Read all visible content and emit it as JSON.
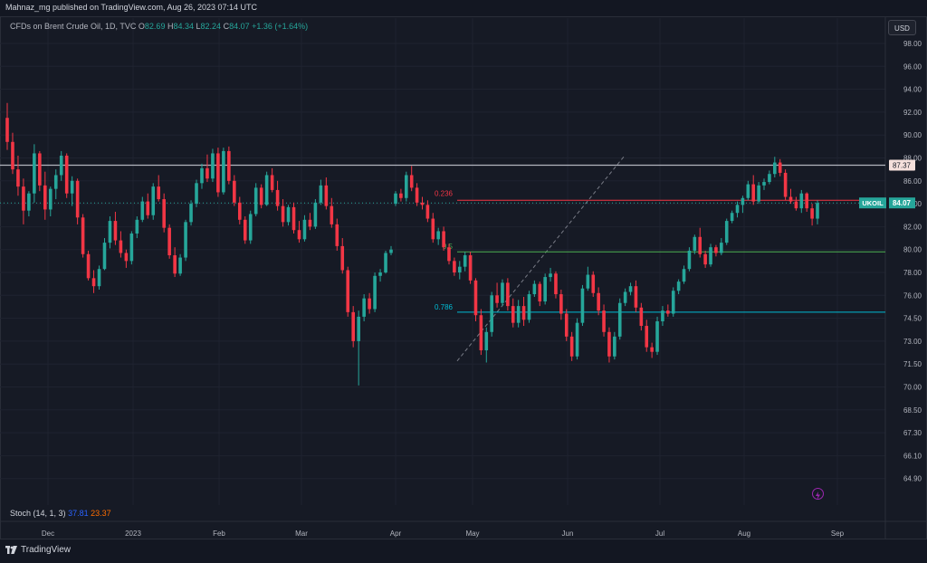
{
  "header": {
    "published": "Mahnaz_mg published on TradingView.com, Aug 26, 2023 07:14 UTC"
  },
  "legend": {
    "symbol": "CFDs on Brent Crude Oil, 1D, TVC",
    "open_label": "O",
    "open": "82.69",
    "high_label": "H",
    "high": "84.34",
    "low_label": "L",
    "low": "82.24",
    "close_label": "C",
    "close": "84.07",
    "change": "+1.36 (+1.64%)"
  },
  "currency_button": "USD",
  "price_axis": [
    "98.00",
    "96.00",
    "94.00",
    "92.00",
    "90.00",
    "88.00",
    "86.00",
    "84.00",
    "82.00",
    "80.00",
    "78.00",
    "76.00",
    "74.50",
    "73.00",
    "71.50",
    "70.00",
    "68.50",
    "67.30",
    "66.10",
    "64.90"
  ],
  "time_axis": [
    "Dec",
    "2023",
    "Feb",
    "Mar",
    "Apr",
    "May",
    "Jun",
    "Jul",
    "Aug",
    "Sep"
  ],
  "fib_labels": [
    "0.236",
    "0.5",
    "0.786"
  ],
  "horizontal_line": {
    "label": "87.37"
  },
  "current_price": {
    "symbol": "UKOIL",
    "value": "84.07"
  },
  "stoch": {
    "label": "Stoch (14, 1, 3)",
    "k": "37.81",
    "d": "23.37"
  },
  "brand": "TradingView",
  "colors": {
    "up": "#26a69a",
    "down": "#f23645",
    "bg": "#161a25",
    "grid": "#1f2330",
    "resistance": "#b2b5be",
    "fib236": "#f23645",
    "fib50": "#4caf50",
    "fib786": "#00bcd4"
  },
  "chart_data": {
    "type": "candlestick",
    "timeframe": "1D",
    "ylim": [
      64.9,
      98.0
    ],
    "y_scale": "nonlinear-axis",
    "candles": [
      [
        91.5,
        92.8,
        88.7,
        89.4
      ],
      [
        89.4,
        90.2,
        86.6,
        87.0
      ],
      [
        87.0,
        88.2,
        84.7,
        85.5
      ],
      [
        85.5,
        86.2,
        82.2,
        83.4
      ],
      [
        83.4,
        85.1,
        82.9,
        84.9
      ],
      [
        84.9,
        89.2,
        84.1,
        88.4
      ],
      [
        88.4,
        88.6,
        85.1,
        85.6
      ],
      [
        85.6,
        86.8,
        82.6,
        83.5
      ],
      [
        83.5,
        85.5,
        82.9,
        85.3
      ],
      [
        85.3,
        87.0,
        84.4,
        86.5
      ],
      [
        86.5,
        88.6,
        86.0,
        88.2
      ],
      [
        88.2,
        88.4,
        84.5,
        84.9
      ],
      [
        84.9,
        86.4,
        83.8,
        86.0
      ],
      [
        86.0,
        86.2,
        82.2,
        82.8
      ],
      [
        82.8,
        83.1,
        79.3,
        79.6
      ],
      [
        79.6,
        79.9,
        77.3,
        77.5
      ],
      [
        77.5,
        78.2,
        76.2,
        76.8
      ],
      [
        76.8,
        78.6,
        76.5,
        78.3
      ],
      [
        78.3,
        81.0,
        78.2,
        80.6
      ],
      [
        80.6,
        82.9,
        80.1,
        82.5
      ],
      [
        82.5,
        83.3,
        80.4,
        80.8
      ],
      [
        80.8,
        81.6,
        79.3,
        79.7
      ],
      [
        79.7,
        80.0,
        78.4,
        79.0
      ],
      [
        79.0,
        81.6,
        78.7,
        81.4
      ],
      [
        81.4,
        82.9,
        81.0,
        82.6
      ],
      [
        82.6,
        84.6,
        82.4,
        84.2
      ],
      [
        84.2,
        84.9,
        82.7,
        83.0
      ],
      [
        83.0,
        85.8,
        82.6,
        85.5
      ],
      [
        85.5,
        86.5,
        84.2,
        84.4
      ],
      [
        84.4,
        84.9,
        81.5,
        81.9
      ],
      [
        81.9,
        82.2,
        79.2,
        79.5
      ],
      [
        79.5,
        80.2,
        77.6,
        77.9
      ],
      [
        77.9,
        79.6,
        77.7,
        79.3
      ],
      [
        79.3,
        82.6,
        79.0,
        82.4
      ],
      [
        82.4,
        84.3,
        82.1,
        84.0
      ],
      [
        84.0,
        86.1,
        83.7,
        85.8
      ],
      [
        85.8,
        87.5,
        85.3,
        87.1
      ],
      [
        87.1,
        88.3,
        85.9,
        86.2
      ],
      [
        86.2,
        88.8,
        85.9,
        88.4
      ],
      [
        88.4,
        88.9,
        84.6,
        85.0
      ],
      [
        85.0,
        88.9,
        84.8,
        88.6
      ],
      [
        88.6,
        89.0,
        85.7,
        86.0
      ],
      [
        86.0,
        86.5,
        83.8,
        84.1
      ],
      [
        84.1,
        84.6,
        82.2,
        82.6
      ],
      [
        82.6,
        82.9,
        80.5,
        80.8
      ],
      [
        80.8,
        83.4,
        80.5,
        83.1
      ],
      [
        83.1,
        85.8,
        82.9,
        85.4
      ],
      [
        85.4,
        85.7,
        83.6,
        83.9
      ],
      [
        83.9,
        86.8,
        83.8,
        86.5
      ],
      [
        86.5,
        87.1,
        85.0,
        85.2
      ],
      [
        85.2,
        86.0,
        83.4,
        83.8
      ],
      [
        83.8,
        84.4,
        82.0,
        82.4
      ],
      [
        82.4,
        83.9,
        82.1,
        83.7
      ],
      [
        83.7,
        84.1,
        81.4,
        81.7
      ],
      [
        81.7,
        82.5,
        80.6,
        80.9
      ],
      [
        80.9,
        83.0,
        80.7,
        82.6
      ],
      [
        82.6,
        83.2,
        81.7,
        82.0
      ],
      [
        82.0,
        84.4,
        81.8,
        84.1
      ],
      [
        84.1,
        86.1,
        83.9,
        85.6
      ],
      [
        85.6,
        86.3,
        83.5,
        83.8
      ],
      [
        83.8,
        84.5,
        81.9,
        82.2
      ],
      [
        82.2,
        82.7,
        79.9,
        80.3
      ],
      [
        80.3,
        81.0,
        77.9,
        78.2
      ],
      [
        78.2,
        78.5,
        74.6,
        74.9
      ],
      [
        74.9,
        75.3,
        72.6,
        73.0
      ],
      [
        73.0,
        75.0,
        70.1,
        74.6
      ],
      [
        74.6,
        76.1,
        74.3,
        75.8
      ],
      [
        75.8,
        76.2,
        74.8,
        75.1
      ],
      [
        75.1,
        78.0,
        74.9,
        77.7
      ],
      [
        77.7,
        78.3,
        77.2,
        78.0
      ],
      [
        78.0,
        79.9,
        77.9,
        79.7
      ],
      [
        79.7,
        80.3,
        79.5,
        80.0
      ],
      [
        84.0,
        85.1,
        83.8,
        84.9
      ],
      [
        84.9,
        85.3,
        84.2,
        84.5
      ],
      [
        84.5,
        86.8,
        84.2,
        86.5
      ],
      [
        86.5,
        87.3,
        85.1,
        85.4
      ],
      [
        85.4,
        85.8,
        83.8,
        84.1
      ],
      [
        84.1,
        84.6,
        83.5,
        83.9
      ],
      [
        83.9,
        84.3,
        82.4,
        82.7
      ],
      [
        82.7,
        83.2,
        80.6,
        80.9
      ],
      [
        80.9,
        81.9,
        80.4,
        81.6
      ],
      [
        81.6,
        82.0,
        79.9,
        80.2
      ],
      [
        80.2,
        80.5,
        78.7,
        79.0
      ],
      [
        79.0,
        79.3,
        77.7,
        78.0
      ],
      [
        78.0,
        79.0,
        77.4,
        78.5
      ],
      [
        78.5,
        79.8,
        78.1,
        79.5
      ],
      [
        79.5,
        79.8,
        77.0,
        77.3
      ],
      [
        77.3,
        77.5,
        74.3,
        74.7
      ],
      [
        74.7,
        75.1,
        72.1,
        72.4
      ],
      [
        72.4,
        73.9,
        71.6,
        73.6
      ],
      [
        73.6,
        76.3,
        73.3,
        76.0
      ],
      [
        76.0,
        77.1,
        75.2,
        75.5
      ],
      [
        75.5,
        77.4,
        75.3,
        77.1
      ],
      [
        77.1,
        77.5,
        75.0,
        75.3
      ],
      [
        75.3,
        75.8,
        73.9,
        74.2
      ],
      [
        74.2,
        75.7,
        73.9,
        75.3
      ],
      [
        75.3,
        75.9,
        74.0,
        74.4
      ],
      [
        74.4,
        76.4,
        74.2,
        76.1
      ],
      [
        76.1,
        77.3,
        75.9,
        77.0
      ],
      [
        77.0,
        77.2,
        75.3,
        75.6
      ],
      [
        75.6,
        77.9,
        75.4,
        77.6
      ],
      [
        77.6,
        78.4,
        77.2,
        77.9
      ],
      [
        77.9,
        78.1,
        75.8,
        76.1
      ],
      [
        76.1,
        76.5,
        74.4,
        74.8
      ],
      [
        74.8,
        75.1,
        73.0,
        73.3
      ],
      [
        73.3,
        73.6,
        71.7,
        72.0
      ],
      [
        72.0,
        74.5,
        71.8,
        74.2
      ],
      [
        74.2,
        76.9,
        74.0,
        76.6
      ],
      [
        76.6,
        78.5,
        76.4,
        77.8
      ],
      [
        77.8,
        78.1,
        75.9,
        76.2
      ],
      [
        76.2,
        76.7,
        74.7,
        75.0
      ],
      [
        75.0,
        75.4,
        73.3,
        73.6
      ],
      [
        73.6,
        73.9,
        71.6,
        72.0
      ],
      [
        72.0,
        73.6,
        71.8,
        73.3
      ],
      [
        73.3,
        75.8,
        73.1,
        75.5
      ],
      [
        75.5,
        76.6,
        75.3,
        76.3
      ],
      [
        76.3,
        77.1,
        76.0,
        76.8
      ],
      [
        76.8,
        77.3,
        74.9,
        75.2
      ],
      [
        75.2,
        75.5,
        73.7,
        74.0
      ],
      [
        74.0,
        74.4,
        72.3,
        72.6
      ],
      [
        72.6,
        72.9,
        71.9,
        72.3
      ],
      [
        72.3,
        74.6,
        72.1,
        74.3
      ],
      [
        74.3,
        75.3,
        74.0,
        75.0
      ],
      [
        75.0,
        75.4,
        74.6,
        74.8
      ],
      [
        74.8,
        76.7,
        74.6,
        76.4
      ],
      [
        76.4,
        77.4,
        76.1,
        77.2
      ],
      [
        77.2,
        78.6,
        77.0,
        78.3
      ],
      [
        78.3,
        80.2,
        78.1,
        79.9
      ],
      [
        79.9,
        81.3,
        79.6,
        81.1
      ],
      [
        81.1,
        81.9,
        79.3,
        79.6
      ],
      [
        79.6,
        79.9,
        78.4,
        78.7
      ],
      [
        78.7,
        80.5,
        78.5,
        80.2
      ],
      [
        80.2,
        80.4,
        79.4,
        79.7
      ],
      [
        79.7,
        81.0,
        79.5,
        80.6
      ],
      [
        80.6,
        82.7,
        80.4,
        82.5
      ],
      [
        82.5,
        83.4,
        82.3,
        83.2
      ],
      [
        83.2,
        84.2,
        82.8,
        83.9
      ],
      [
        83.9,
        84.7,
        83.2,
        84.5
      ],
      [
        84.5,
        86.0,
        84.3,
        85.7
      ],
      [
        85.7,
        86.5,
        83.9,
        84.2
      ],
      [
        84.2,
        85.9,
        84.0,
        85.6
      ],
      [
        85.6,
        86.2,
        85.2,
        85.9
      ],
      [
        85.9,
        86.9,
        85.7,
        86.6
      ],
      [
        86.6,
        88.1,
        86.3,
        87.6
      ],
      [
        87.6,
        87.9,
        86.4,
        86.7
      ],
      [
        86.7,
        87.0,
        84.3,
        84.6
      ],
      [
        84.6,
        85.3,
        84.0,
        84.2
      ],
      [
        84.2,
        84.6,
        83.4,
        83.6
      ],
      [
        83.6,
        85.2,
        83.2,
        84.9
      ],
      [
        84.9,
        85.0,
        83.3,
        83.6
      ],
      [
        83.6,
        84.0,
        82.1,
        82.7
      ],
      [
        82.7,
        84.3,
        82.2,
        84.07
      ]
    ],
    "fib_levels": [
      {
        "ratio": "0.236",
        "price": 84.3
      },
      {
        "ratio": "0.5",
        "price": 79.8
      },
      {
        "ratio": "0.786",
        "price": 74.9
      }
    ],
    "resistance": 87.37,
    "last_price": 84.07
  }
}
